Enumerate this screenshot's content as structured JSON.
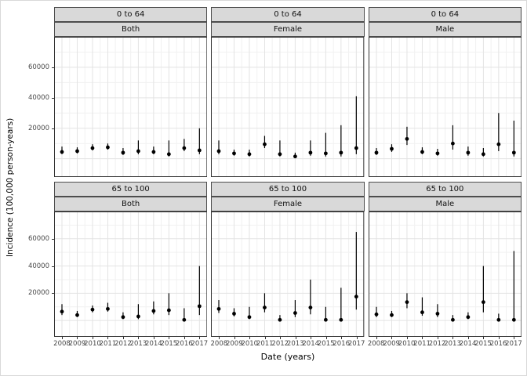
{
  "colors": {
    "strip_bg": "#d9d9d9",
    "panel_bg": "#ffffff",
    "panel_border": "#333333",
    "grid_major": "#e3e3e3",
    "grid_minor": "#f1f1f1",
    "point": "#000000",
    "tick_text": "#4a4a4a"
  },
  "chart_data": {
    "type": "pointrange",
    "title": "",
    "xlabel": "Date (years)",
    "ylabel": "Incidence (100,000 person-years)",
    "x": [
      2008,
      2009,
      2010,
      2011,
      2012,
      2013,
      2014,
      2015,
      2016,
      2017
    ],
    "ylim": [
      -12000,
      80000
    ],
    "yticks": [
      20000,
      40000,
      60000
    ],
    "yticks_minor": [
      10000,
      30000,
      50000,
      70000
    ],
    "ymajor_gridlines": [
      0,
      20000,
      40000,
      60000
    ],
    "grid": true,
    "legend": "none",
    "facets": {
      "rows": [
        "0 to 64",
        "65 to 100"
      ],
      "cols": [
        "Both",
        "Female",
        "Male"
      ]
    },
    "panels": [
      {
        "age": "0 to 64",
        "sex": "Both",
        "mid": [
          4500,
          5000,
          7000,
          7500,
          4000,
          5000,
          4500,
          3000,
          7000,
          5500
        ],
        "lo": [
          3000,
          3500,
          5500,
          6000,
          2500,
          3000,
          3000,
          1500,
          5000,
          3000
        ],
        "hi": [
          8000,
          7500,
          9500,
          10000,
          7000,
          12000,
          8000,
          12000,
          13000,
          20000
        ]
      },
      {
        "age": "0 to 64",
        "sex": "Female",
        "mid": [
          5000,
          3500,
          3000,
          9500,
          3000,
          1500,
          4000,
          3500,
          4000,
          7000
        ],
        "lo": [
          3000,
          2000,
          1500,
          7000,
          1500,
          500,
          2000,
          1500,
          1500,
          3000
        ],
        "hi": [
          12000,
          6000,
          6000,
          15000,
          12000,
          4000,
          12000,
          17000,
          22000,
          41000
        ]
      },
      {
        "age": "0 to 64",
        "sex": "Male",
        "mid": [
          4000,
          6500,
          13000,
          4500,
          3500,
          10000,
          4000,
          3000,
          9500,
          4000
        ],
        "lo": [
          2500,
          4500,
          9000,
          3000,
          2000,
          6000,
          2000,
          1500,
          5000,
          1500
        ],
        "hi": [
          7000,
          9500,
          21000,
          7500,
          6500,
          22000,
          8000,
          7000,
          30000,
          25000
        ]
      },
      {
        "age": "65 to 100",
        "sex": "Both",
        "mid": [
          6500,
          4000,
          8000,
          8500,
          2500,
          3000,
          7000,
          7500,
          500,
          10500
        ],
        "lo": [
          4000,
          2500,
          6000,
          6500,
          1000,
          1000,
          4500,
          4000,
          0,
          4000
        ],
        "hi": [
          12000,
          7000,
          11000,
          13000,
          6000,
          12000,
          14000,
          20000,
          9000,
          40000
        ]
      },
      {
        "age": "65 to 100",
        "sex": "Female",
        "mid": [
          8500,
          5000,
          2500,
          9500,
          500,
          5500,
          9500,
          500,
          500,
          17500
        ],
        "lo": [
          5500,
          3000,
          1000,
          6000,
          0,
          2500,
          4500,
          0,
          0,
          8000
        ],
        "hi": [
          15000,
          9000,
          10000,
          20000,
          4000,
          15000,
          30000,
          10000,
          24000,
          65000
        ]
      },
      {
        "age": "65 to 100",
        "sex": "Male",
        "mid": [
          4500,
          4000,
          13500,
          6000,
          5000,
          500,
          2500,
          13500,
          500,
          500
        ],
        "lo": [
          2500,
          2500,
          9000,
          3500,
          2500,
          0,
          1000,
          6000,
          0,
          0
        ],
        "hi": [
          10000,
          7000,
          20000,
          17000,
          12000,
          4000,
          6000,
          40000,
          5000,
          51000
        ]
      }
    ]
  }
}
